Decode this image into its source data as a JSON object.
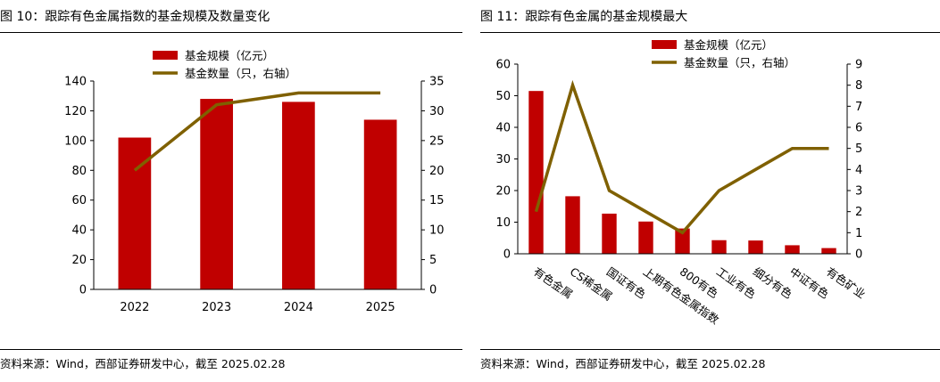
{
  "colors": {
    "bar": "#C00000",
    "line": "#7F6000",
    "axis": "#000000"
  },
  "chart_data": [
    {
      "type": "bar",
      "title": "图 10：跟踪有色金属指数的基金规模及数量变化",
      "source": "资料来源：Wind，西部证券研发中心，截至 2025.02.28",
      "categories": [
        "2022",
        "2023",
        "2024",
        "2025"
      ],
      "series": [
        {
          "name": "基金规模（亿元）",
          "type": "bar",
          "axis": "left",
          "values": [
            102,
            128,
            126,
            114
          ]
        },
        {
          "name": "基金数量（只，右轴）",
          "type": "line",
          "axis": "right",
          "values": [
            20,
            31,
            33,
            33
          ]
        }
      ],
      "ylim": [
        0,
        140
      ],
      "y_ticks": [
        "0",
        "20",
        "40",
        "60",
        "80",
        "100",
        "120",
        "140"
      ],
      "y2lim": [
        0,
        35
      ],
      "y2_ticks": [
        "0",
        "5",
        "10",
        "15",
        "20",
        "25",
        "30",
        "35"
      ],
      "legend_position": "top-center",
      "grid": false
    },
    {
      "type": "bar",
      "title": "图 11：跟踪有色金属的基金规模最大",
      "source": "资料来源：Wind，西部证券研发中心，截至 2025.02.28",
      "categories": [
        "有色金属",
        "CS稀金属",
        "国证有色",
        "上期有色金属指数",
        "800有色",
        "工业有色",
        "细分有色",
        "中证有色",
        "有色矿业"
      ],
      "series": [
        {
          "name": "基金规模（亿元）",
          "type": "bar",
          "axis": "left",
          "values": [
            51.5,
            18.2,
            12.7,
            10.2,
            8.0,
            4.3,
            4.2,
            2.7,
            1.8
          ]
        },
        {
          "name": "基金数量（只，右轴）",
          "type": "line",
          "axis": "right",
          "values": [
            2,
            8,
            3,
            2,
            1,
            3,
            4,
            5,
            5
          ]
        }
      ],
      "ylim": [
        0,
        60
      ],
      "y_ticks": [
        "0",
        "10",
        "20",
        "30",
        "40",
        "50",
        "60"
      ],
      "y2lim": [
        0,
        9
      ],
      "y2_ticks": [
        "0",
        "1",
        "2",
        "3",
        "4",
        "5",
        "6",
        "7",
        "8",
        "9"
      ],
      "legend_position": "top-center",
      "grid": false
    }
  ]
}
